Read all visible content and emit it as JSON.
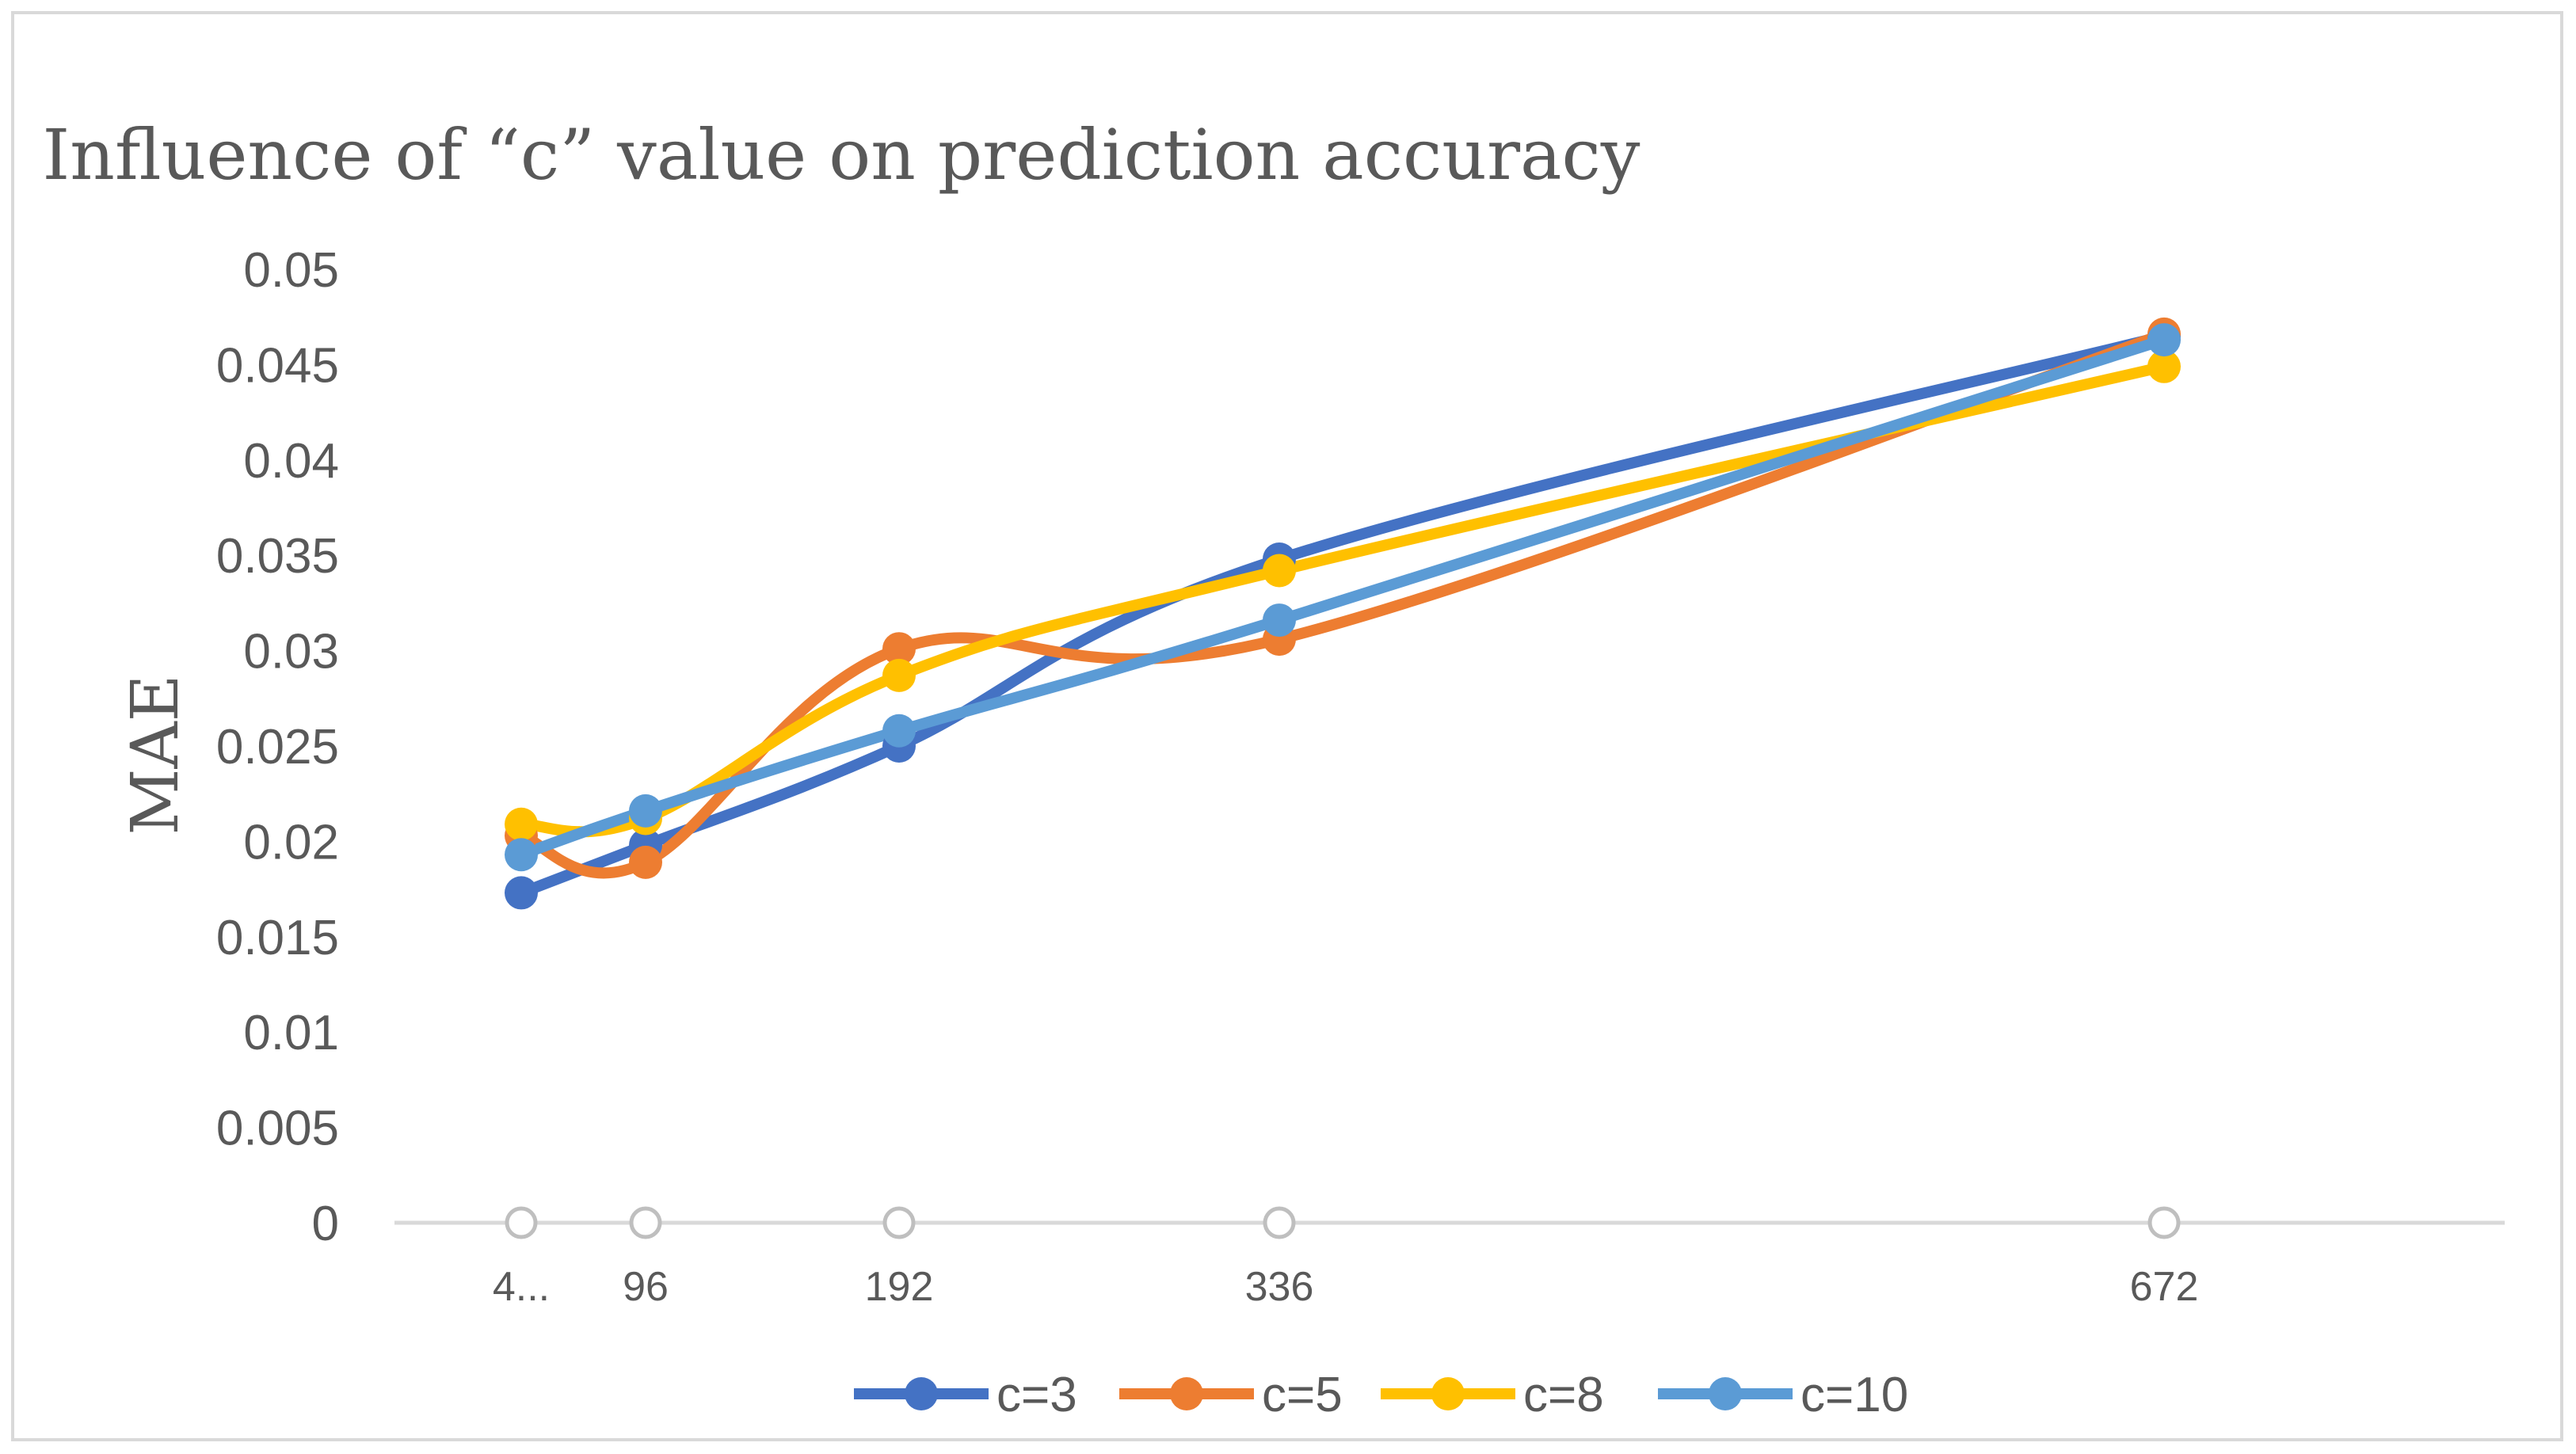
{
  "chart_data": {
    "type": "line",
    "title": "Influence of “c” value on prediction accuracy",
    "xlabel": "",
    "ylabel": "MAE",
    "categories": [
      "4...",
      "96",
      "192",
      "336",
      "672"
    ],
    "x": [
      48,
      96,
      192,
      336,
      672
    ],
    "ylim": [
      0,
      0.05
    ],
    "yticks": [
      "0",
      "0.005",
      "0.01",
      "0.015",
      "0.02",
      "0.025",
      "0.03",
      "0.035",
      "0.04",
      "0.045",
      "0.05"
    ],
    "ytick_values": [
      0,
      0.005,
      0.01,
      0.015,
      0.02,
      0.025,
      0.03,
      0.035,
      0.04,
      0.045,
      0.05
    ],
    "grid": false,
    "legend_position": "bottom",
    "series": [
      {
        "name": "c=3",
        "color": "#4472c4",
        "values": [
          0.0173,
          0.0198,
          0.025,
          0.0348,
          0.0465
        ]
      },
      {
        "name": "c=5",
        "color": "#ed7d31",
        "values": [
          0.0203,
          0.0189,
          0.0301,
          0.0306,
          0.0466
        ]
      },
      {
        "name": "c=8",
        "color": "#ffc000",
        "values": [
          0.0209,
          0.0212,
          0.0287,
          0.0342,
          0.0449
        ]
      },
      {
        "name": "c=10",
        "color": "#5b9bd5",
        "values": [
          0.0193,
          0.0216,
          0.0258,
          0.0316,
          0.0463
        ]
      }
    ],
    "axis_color": "#d9d9d9",
    "text_color": "#595959"
  }
}
